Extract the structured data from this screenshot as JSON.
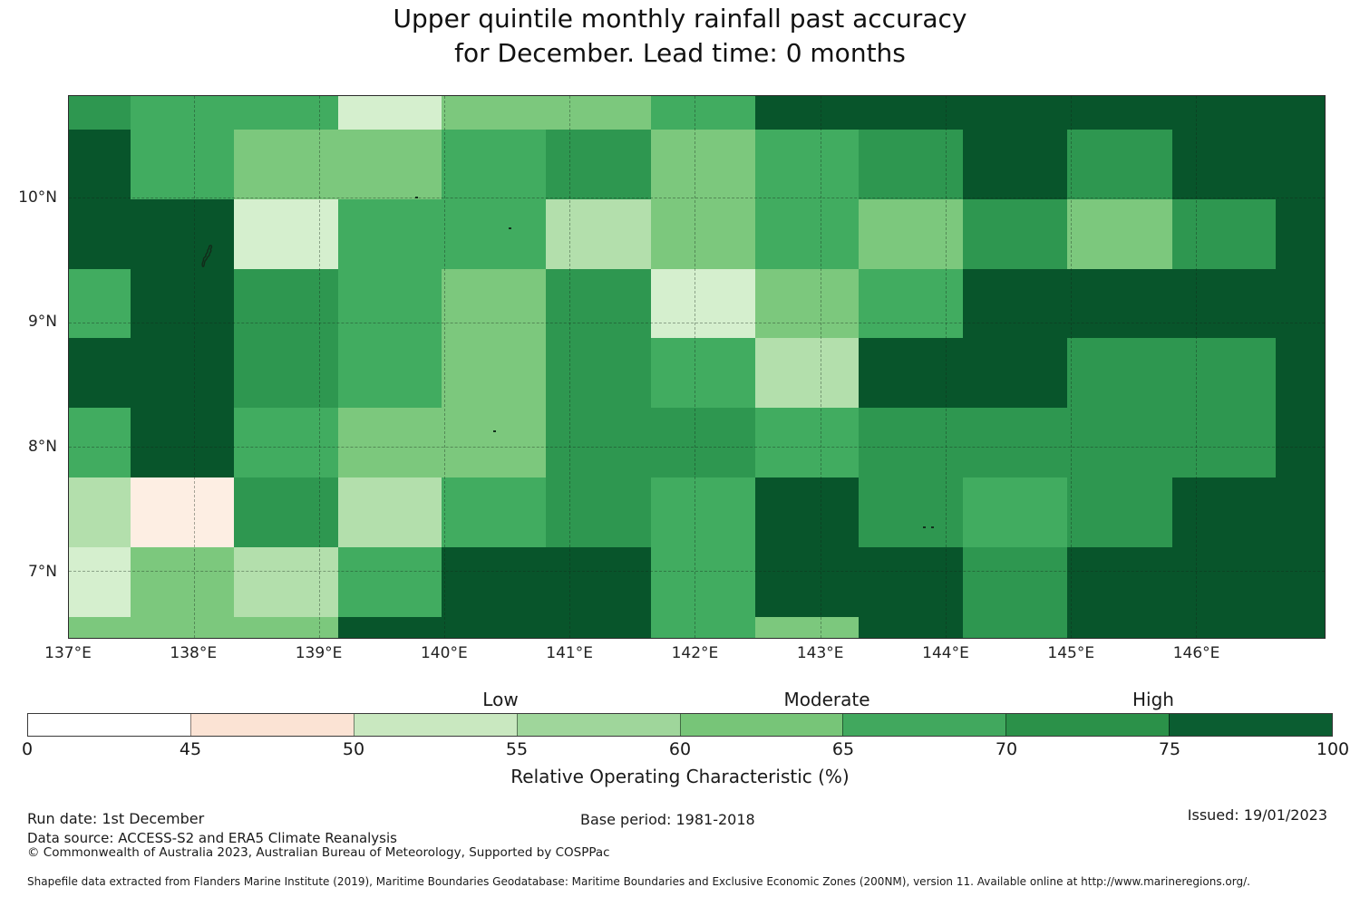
{
  "title": {
    "line1": "Upper quintile monthly rainfall past accuracy",
    "line2": "for December. Lead time: 0 months"
  },
  "chart_data": {
    "type": "heatmap",
    "title": "Upper quintile monthly rainfall past accuracy for December. Lead time: 0 months",
    "x_domain": [
      137.0,
      147.03
    ],
    "y_domain": [
      6.46,
      10.82
    ],
    "x_axis_ticks": [
      {
        "value": 137,
        "label": "137°E"
      },
      {
        "value": 138,
        "label": "138°E"
      },
      {
        "value": 139,
        "label": "139°E"
      },
      {
        "value": 140,
        "label": "140°E"
      },
      {
        "value": 141,
        "label": "141°E"
      },
      {
        "value": 142,
        "label": "142°E"
      },
      {
        "value": 143,
        "label": "143°E"
      },
      {
        "value": 144,
        "label": "144°E"
      },
      {
        "value": 145,
        "label": "145°E"
      },
      {
        "value": 146,
        "label": "146°E"
      }
    ],
    "y_axis_ticks": [
      {
        "value": 10,
        "label": "10°N"
      },
      {
        "value": 9,
        "label": "9°N"
      },
      {
        "value": 8,
        "label": "8°N"
      },
      {
        "value": 7,
        "label": "7°N"
      }
    ],
    "gridline_lons": [
      138,
      139,
      140,
      141,
      142,
      143,
      144,
      145,
      146
    ],
    "gridline_lats": [
      7,
      8,
      9,
      10
    ],
    "buckets": [
      {
        "range": "0-45",
        "color_bar": "#ffffff",
        "color_map": "#ffffff"
      },
      {
        "range": "45-50",
        "color_bar": "#fbe3d4",
        "color_map": "#fdeee3"
      },
      {
        "range": "50-55",
        "color_bar": "#c9e8c0",
        "color_map": "#d5efce"
      },
      {
        "range": "55-60",
        "color_bar": "#9fd69b",
        "color_map": "#b3dfac"
      },
      {
        "range": "60-65",
        "color_bar": "#77c578",
        "color_map": "#7cc87d"
      },
      {
        "range": "65-70",
        "color_bar": "#41a85e",
        "color_map": "#41ac60"
      },
      {
        "range": "70-75",
        "color_bar": "#2b9149",
        "color_map": "#2e9750"
      },
      {
        "range": "75-100",
        "color_bar": "#0b5d31",
        "color_map": "#08552b"
      }
    ],
    "grid": {
      "x_edges": [
        137.0,
        137.49,
        138.32,
        139.15,
        139.98,
        140.81,
        141.65,
        142.48,
        143.31,
        144.14,
        144.97,
        145.81,
        146.64,
        147.03
      ],
      "y_edges": [
        10.82,
        10.55,
        9.99,
        9.43,
        8.87,
        8.31,
        7.75,
        7.19,
        6.63,
        6.46
      ],
      "values_are": "bucket index into buckets[] (ROC % range)",
      "values": [
        [
          6,
          5,
          5,
          2,
          4,
          4,
          5,
          7,
          7,
          7,
          7,
          7,
          7
        ],
        [
          7,
          5,
          4,
          4,
          5,
          6,
          4,
          5,
          6,
          7,
          6,
          7,
          7
        ],
        [
          7,
          7,
          2,
          5,
          5,
          3,
          4,
          5,
          4,
          6,
          4,
          6,
          7
        ],
        [
          5,
          7,
          6,
          5,
          4,
          6,
          2,
          4,
          5,
          7,
          7,
          7,
          7
        ],
        [
          7,
          7,
          6,
          5,
          4,
          6,
          5,
          3,
          7,
          7,
          6,
          6,
          7
        ],
        [
          5,
          7,
          5,
          4,
          4,
          6,
          6,
          5,
          6,
          6,
          6,
          6,
          7
        ],
        [
          3,
          1,
          6,
          3,
          5,
          6,
          5,
          7,
          6,
          5,
          6,
          7,
          7
        ],
        [
          2,
          4,
          3,
          5,
          7,
          7,
          5,
          7,
          7,
          6,
          7,
          7,
          7
        ],
        [
          4,
          4,
          4,
          7,
          7,
          7,
          5,
          4,
          7,
          6,
          7,
          7,
          7
        ]
      ]
    },
    "islands": [
      {
        "lon": 138.1,
        "lat": 9.6,
        "shape": "outline"
      },
      {
        "lon": 139.77,
        "lat": 10.01,
        "shape": "dot"
      },
      {
        "lon": 140.51,
        "lat": 9.76,
        "shape": "dot"
      },
      {
        "lon": 140.39,
        "lat": 8.13,
        "shape": "dot"
      },
      {
        "lon": 143.82,
        "lat": 7.36,
        "shape": "dot"
      },
      {
        "lon": 143.89,
        "lat": 7.36,
        "shape": "dot"
      }
    ],
    "legend_position": "bottom",
    "grid_on": true
  },
  "colorbar": {
    "tick_labels": [
      "0",
      "45",
      "50",
      "55",
      "60",
      "65",
      "70",
      "75",
      "100"
    ],
    "captions": [
      {
        "text": "Low",
        "at_tick": 3
      },
      {
        "text": "Moderate",
        "at_tick": 5
      },
      {
        "text": "High",
        "at_tick": 7
      }
    ],
    "axis_label": "Relative Operating Characteristic (%)"
  },
  "footer": {
    "run_date": "Run date: 1st December",
    "base_period": "Base period: 1981-2018",
    "issued": "Issued: 19/01/2023",
    "data_source": "Data source: ACCESS-S2 and ERA5 Climate Reanalysis",
    "copyright": "© Commonwealth of Australia 2023, Australian Bureau of Meteorology, Supported by COSPPac",
    "shapefile_note": "Shapefile data extracted from Flanders Marine Institute (2019), Maritime Boundaries Geodatabase: Maritime Boundaries and Exclusive Economic Zones (200NM), version 11. Available online at http://www.marineregions.org/."
  }
}
